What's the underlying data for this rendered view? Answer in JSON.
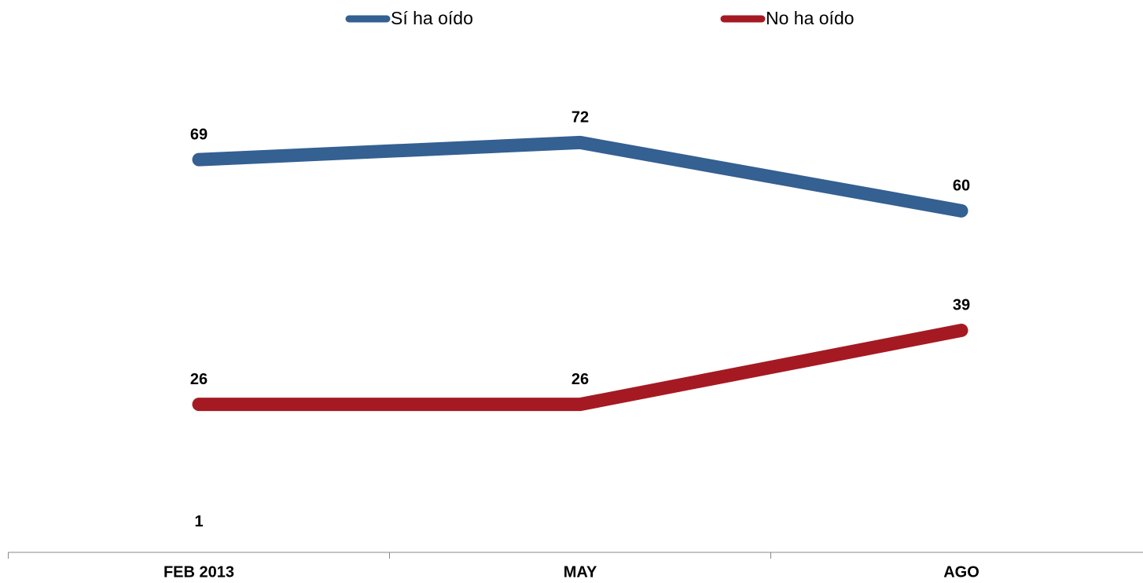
{
  "chart_data": {
    "type": "line",
    "categories": [
      "FEB 2013",
      "MAY",
      "AGO"
    ],
    "series": [
      {
        "name": "Sí ha oído",
        "color": "#346092",
        "values": [
          69,
          72,
          60
        ]
      },
      {
        "name": "No ha oído",
        "color": "#a51a22",
        "values": [
          26,
          26,
          39
        ]
      },
      {
        "color": "#ffffff",
        "values": [
          1,
          null,
          null
        ]
      }
    ],
    "ylim": [
      0,
      90
    ]
  }
}
